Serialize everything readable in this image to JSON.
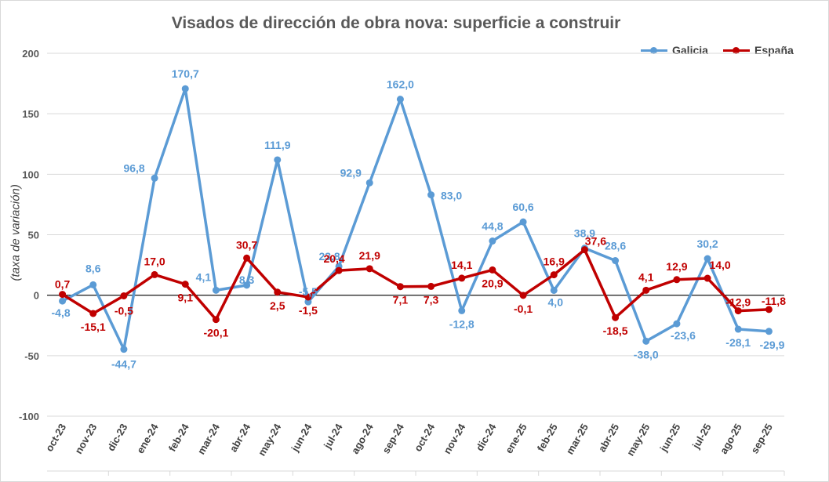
{
  "chart_data": {
    "type": "line",
    "title": "Visados de dirección de obra nova: superficie a construir",
    "xlabel": "",
    "ylabel": "(taxa de variación)",
    "ylim": [
      -100,
      200
    ],
    "yticks": [
      -100,
      -50,
      0,
      50,
      100,
      150,
      200
    ],
    "grid": true,
    "legend": "top-right",
    "categories": [
      "oct-23",
      "nov-23",
      "dic-23",
      "ene-24",
      "feb-24",
      "mar-24",
      "abr-24",
      "may-24",
      "jun-24",
      "jul-24",
      "ago-24",
      "sep-24",
      "oct-24",
      "nov-24",
      "dic-24",
      "ene-25",
      "feb-25",
      "mar-25",
      "abr-25",
      "may-25",
      "jun-25",
      "jul-25",
      "ago-25",
      "sep-25"
    ],
    "series": [
      {
        "name": "Galicia",
        "color": "#5b9bd5",
        "values": [
          -4.8,
          8.6,
          -44.7,
          96.8,
          170.7,
          4.1,
          8.3,
          111.9,
          -5.5,
          23.8,
          92.9,
          162.0,
          83.0,
          -12.8,
          44.8,
          60.6,
          4.0,
          38.9,
          28.6,
          -38.0,
          -23.6,
          30.2,
          -28.1,
          -29.9
        ],
        "labels": [
          "-4,8",
          "8,6",
          "-44,7",
          "96,8",
          "170,7",
          "4,1",
          "8,3",
          "111,9",
          "-5,5",
          "23,8",
          "92,9",
          "162,0",
          "83,0",
          "-12,8",
          "44,8",
          "60,6",
          "4,0",
          "38,9",
          "28,6",
          "-38,0",
          "-23,6",
          "30,2",
          "-28,1",
          "-29,9"
        ]
      },
      {
        "name": "España",
        "color": "#c00000",
        "values": [
          0.7,
          -15.1,
          -0.5,
          17.0,
          9.1,
          -20.1,
          30.7,
          2.5,
          -1.5,
          20.4,
          21.9,
          7.1,
          7.3,
          14.1,
          20.9,
          -0.1,
          16.9,
          37.6,
          -18.5,
          4.1,
          12.9,
          14.0,
          -12.9,
          -11.8
        ],
        "labels": [
          "0,7",
          "-15,1",
          "-0,5",
          "17,0",
          "9,1",
          "-20,1",
          "30,7",
          "2,5",
          "-1,5",
          "20,4",
          "21,9",
          "7,1",
          "7,3",
          "14,1",
          "20,9",
          "-0,1",
          "16,9",
          "37,6",
          "-18,5",
          "4,1",
          "12,9",
          "14,0",
          "-12,9",
          "-11,8"
        ]
      }
    ]
  }
}
